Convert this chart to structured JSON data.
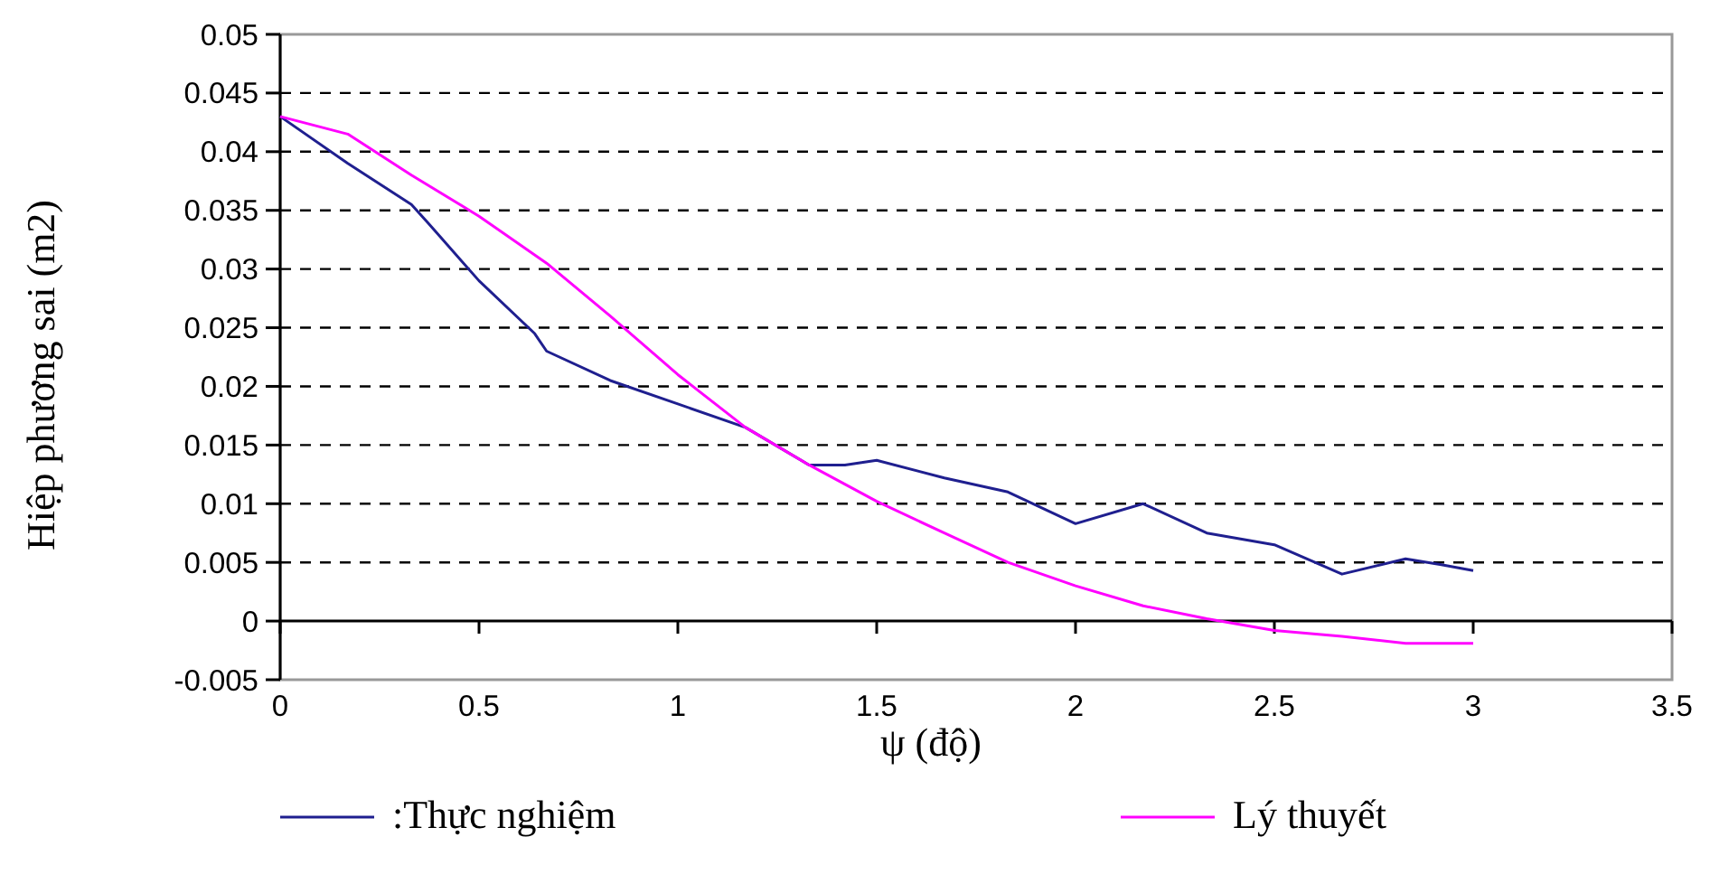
{
  "chart_data": {
    "type": "line",
    "xlabel": "ψ (độ)",
    "ylabel": "Hiệp phương sai (m2)",
    "xlim": [
      0,
      3.5
    ],
    "xticks": [
      0,
      0.5,
      1,
      1.5,
      2,
      2.5,
      3,
      3.5
    ],
    "ylim": [
      -0.005,
      0.05
    ],
    "yticks": [
      -0.005,
      0,
      0.005,
      0.01,
      0.015,
      0.02,
      0.025,
      0.03,
      0.035,
      0.04,
      0.045,
      0.05
    ],
    "grid": "y",
    "legend": "bottom",
    "marker": "none",
    "line_style": "solid",
    "series": [
      {
        "name": ":Thực nghiệm",
        "color": "#1f1f8f",
        "x": [
          0,
          0.17,
          0.33,
          0.37,
          0.5,
          0.64,
          0.67,
          0.83,
          1,
          1.17,
          1.33,
          1.42,
          1.5,
          1.67,
          1.83,
          2,
          2.17,
          2.33,
          2.5,
          2.67,
          2.83,
          2.92,
          3
        ],
        "values": [
          0.043,
          0.039,
          0.0355,
          0.034,
          0.029,
          0.0245,
          0.023,
          0.0205,
          0.0185,
          0.0165,
          0.0133,
          0.0133,
          0.0137,
          0.0122,
          0.011,
          0.0083,
          0.01,
          0.0075,
          0.0065,
          0.004,
          0.0053,
          0.0048,
          0.0043
        ]
      },
      {
        "name": "Lý thuyết",
        "color": "#ff00ff",
        "x": [
          0,
          0.17,
          0.33,
          0.5,
          0.67,
          0.83,
          1,
          1.17,
          1.33,
          1.5,
          1.67,
          1.83,
          2,
          2.17,
          2.33,
          2.5,
          2.67,
          2.83,
          3
        ],
        "values": [
          0.043,
          0.0415,
          0.038,
          0.0345,
          0.0305,
          0.026,
          0.021,
          0.0165,
          0.0133,
          0.0102,
          0.0075,
          0.005,
          0.003,
          0.0013,
          0.0002,
          -0.0008,
          -0.0013,
          -0.0019,
          -0.0019
        ]
      }
    ]
  }
}
